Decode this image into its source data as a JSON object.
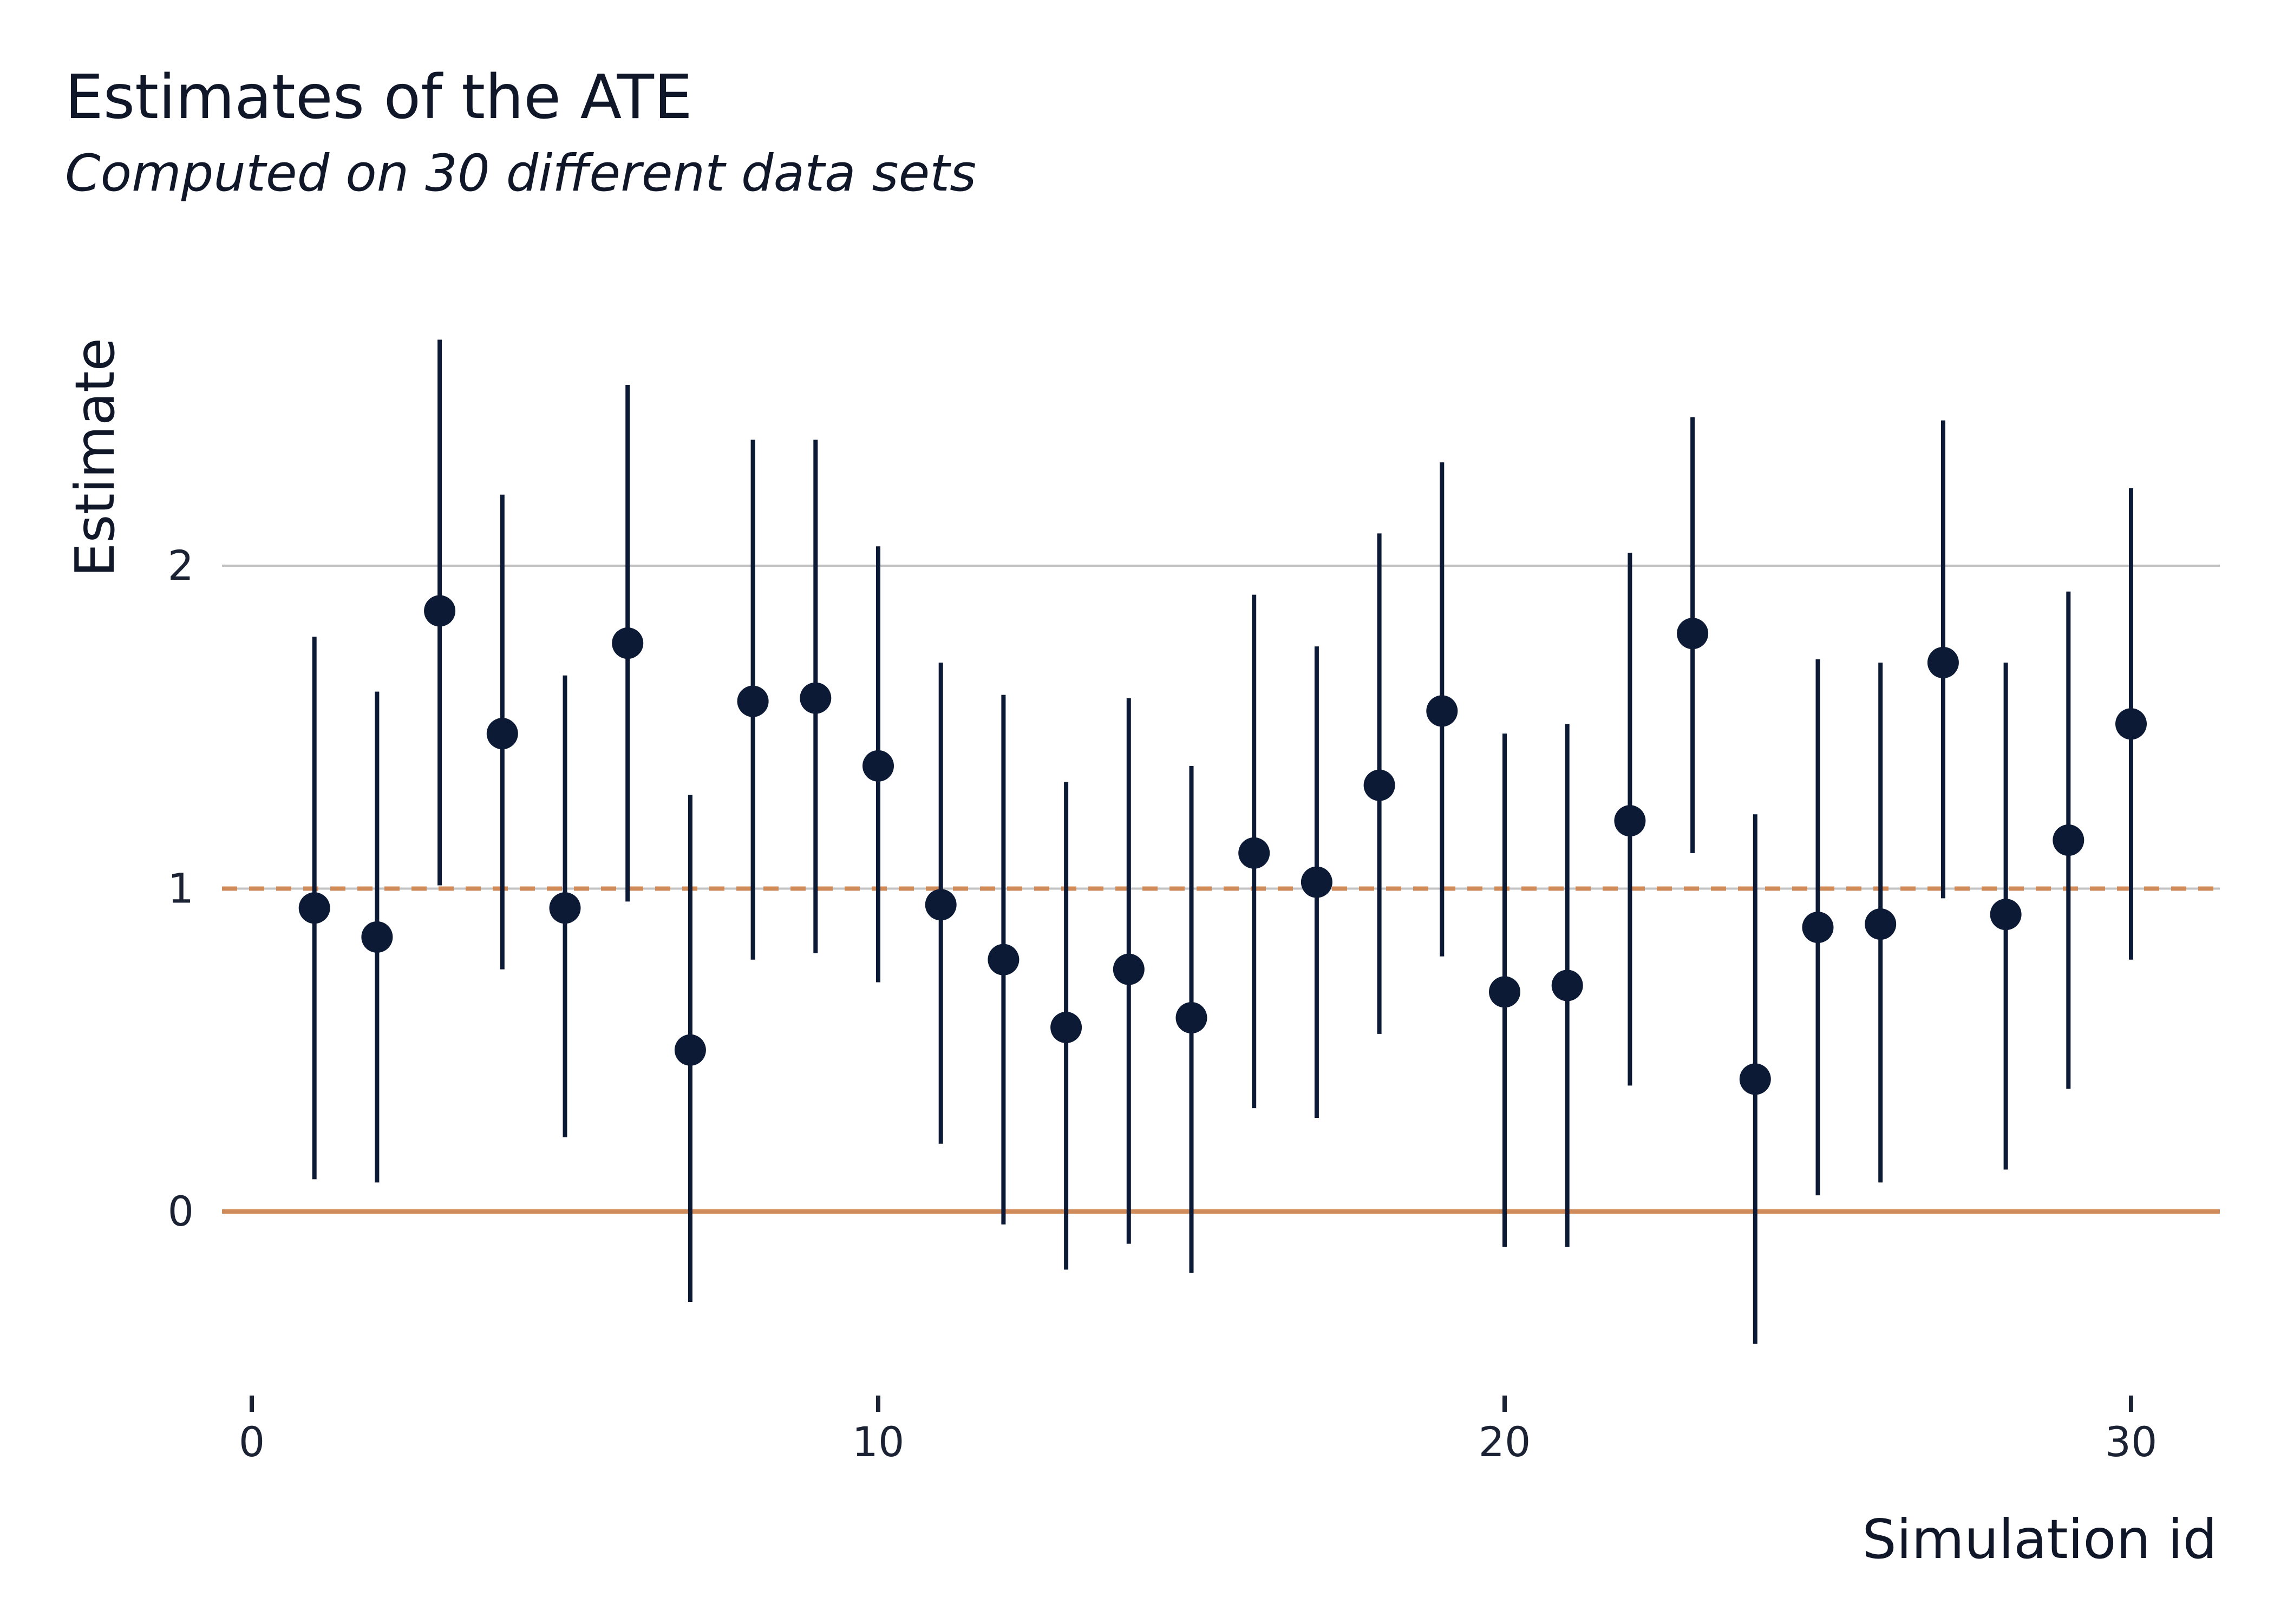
{
  "colors": {
    "background": "#ffffff",
    "point": "#0c1a36",
    "reference_line": "#d08b5b",
    "grid": "#c2c2c2",
    "text": "#0f1729"
  },
  "chart_data": {
    "type": "scatter",
    "title": "Estimates of the ATE",
    "subtitle": "Computed on 30 different data sets",
    "xlabel": "Simulation id",
    "ylabel": "Estimate",
    "xlim": [
      -0.5,
      31.5
    ],
    "ylim": [
      -0.55,
      2.8
    ],
    "x_ticks": [
      0,
      10,
      20,
      30
    ],
    "y_ticks": [
      0,
      1,
      2
    ],
    "grid": "horizontal major only",
    "legend": "none",
    "reference_lines": [
      {
        "y": 0,
        "style": "solid",
        "color": "#d08b5b"
      },
      {
        "y": 1,
        "style": "dashed",
        "color": "#d08b5b"
      }
    ],
    "points": [
      {
        "x": 1,
        "estimate": 0.94,
        "lower": 0.1,
        "upper": 1.78
      },
      {
        "x": 2,
        "estimate": 0.85,
        "lower": 0.09,
        "upper": 1.61
      },
      {
        "x": 3,
        "estimate": 1.86,
        "lower": 1.01,
        "upper": 2.7
      },
      {
        "x": 4,
        "estimate": 1.48,
        "lower": 0.75,
        "upper": 2.22
      },
      {
        "x": 5,
        "estimate": 0.94,
        "lower": 0.23,
        "upper": 1.66
      },
      {
        "x": 6,
        "estimate": 1.76,
        "lower": 0.96,
        "upper": 2.56
      },
      {
        "x": 7,
        "estimate": 0.5,
        "lower": -0.28,
        "upper": 1.29
      },
      {
        "x": 8,
        "estimate": 1.58,
        "lower": 0.78,
        "upper": 2.39
      },
      {
        "x": 9,
        "estimate": 1.59,
        "lower": 0.8,
        "upper": 2.39
      },
      {
        "x": 10,
        "estimate": 1.38,
        "lower": 0.71,
        "upper": 2.06
      },
      {
        "x": 11,
        "estimate": 0.95,
        "lower": 0.21,
        "upper": 1.7
      },
      {
        "x": 12,
        "estimate": 0.78,
        "lower": -0.04,
        "upper": 1.6
      },
      {
        "x": 13,
        "estimate": 0.57,
        "lower": -0.18,
        "upper": 1.33
      },
      {
        "x": 14,
        "estimate": 0.75,
        "lower": -0.1,
        "upper": 1.59
      },
      {
        "x": 15,
        "estimate": 0.6,
        "lower": -0.19,
        "upper": 1.38
      },
      {
        "x": 16,
        "estimate": 1.11,
        "lower": 0.32,
        "upper": 1.91
      },
      {
        "x": 17,
        "estimate": 1.02,
        "lower": 0.29,
        "upper": 1.75
      },
      {
        "x": 18,
        "estimate": 1.32,
        "lower": 0.55,
        "upper": 2.1
      },
      {
        "x": 19,
        "estimate": 1.55,
        "lower": 0.79,
        "upper": 2.32
      },
      {
        "x": 20,
        "estimate": 0.68,
        "lower": -0.11,
        "upper": 1.48
      },
      {
        "x": 21,
        "estimate": 0.7,
        "lower": -0.11,
        "upper": 1.51
      },
      {
        "x": 22,
        "estimate": 1.21,
        "lower": 0.39,
        "upper": 2.04
      },
      {
        "x": 23,
        "estimate": 1.79,
        "lower": 1.11,
        "upper": 2.46
      },
      {
        "x": 24,
        "estimate": 0.41,
        "lower": -0.41,
        "upper": 1.23
      },
      {
        "x": 25,
        "estimate": 0.88,
        "lower": 0.05,
        "upper": 1.71
      },
      {
        "x": 26,
        "estimate": 0.89,
        "lower": 0.09,
        "upper": 1.7
      },
      {
        "x": 27,
        "estimate": 1.7,
        "lower": 0.97,
        "upper": 2.45
      },
      {
        "x": 28,
        "estimate": 0.92,
        "lower": 0.13,
        "upper": 1.7
      },
      {
        "x": 29,
        "estimate": 1.15,
        "lower": 0.38,
        "upper": 1.92
      },
      {
        "x": 30,
        "estimate": 1.51,
        "lower": 0.78,
        "upper": 2.24
      }
    ]
  }
}
